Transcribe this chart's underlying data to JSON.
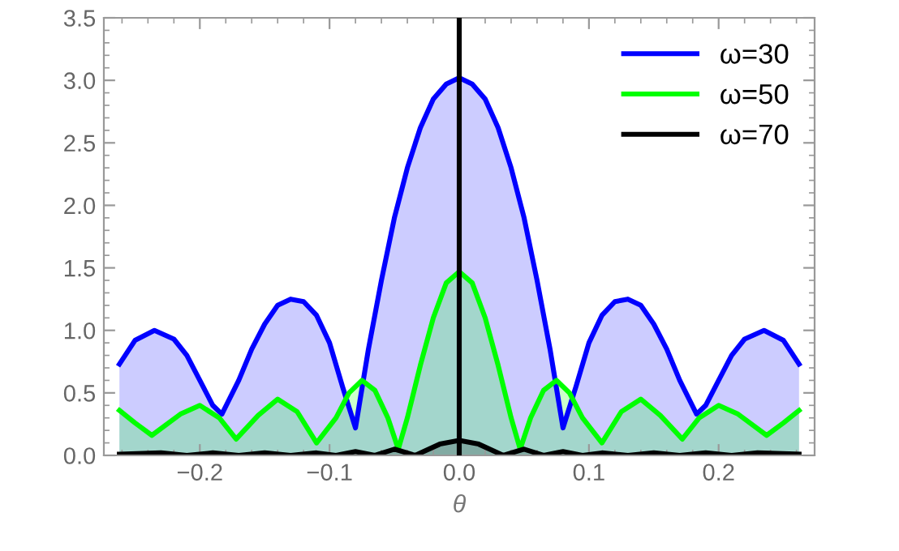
{
  "chart_data": {
    "type": "area",
    "xlabel": "θ",
    "xlim": [
      -0.274,
      0.274
    ],
    "ylim": [
      0,
      3.5
    ],
    "xticks": [
      {
        "value": -0.2,
        "label": "−0.2"
      },
      {
        "value": -0.1,
        "label": "−0.1"
      },
      {
        "value": 0,
        "label": "0.0"
      },
      0.1,
      0.2
    ],
    "yticks": [
      {
        "value": 0,
        "label": "0.0"
      },
      0.5,
      {
        "value": 1,
        "label": "1.0"
      },
      1.5,
      {
        "value": 2,
        "label": "2.0"
      },
      2.5,
      {
        "value": 3,
        "label": "3.0"
      },
      3.5
    ],
    "legend": "top right",
    "grid": false,
    "ref_lines": [
      {
        "axis": "x",
        "value": 0,
        "color": "#000000"
      }
    ],
    "series": [
      {
        "name": "ω=30",
        "color": "#0000ff",
        "x": [
          -0.262,
          -0.25,
          -0.235,
          -0.22,
          -0.21,
          -0.2,
          -0.19,
          -0.183,
          -0.17,
          -0.16,
          -0.15,
          -0.14,
          -0.13,
          -0.12,
          -0.11,
          -0.1,
          -0.09,
          -0.08,
          -0.07,
          -0.06,
          -0.05,
          -0.04,
          -0.03,
          -0.02,
          -0.01,
          0,
          0.01,
          0.02,
          0.03,
          0.04,
          0.05,
          0.06,
          0.07,
          0.08,
          0.09,
          0.1,
          0.11,
          0.12,
          0.13,
          0.14,
          0.15,
          0.16,
          0.17,
          0.183,
          0.19,
          0.2,
          0.21,
          0.22,
          0.235,
          0.25,
          0.262
        ],
        "values": [
          0.73,
          0.92,
          1.0,
          0.93,
          0.8,
          0.6,
          0.4,
          0.33,
          0.6,
          0.85,
          1.05,
          1.2,
          1.25,
          1.23,
          1.12,
          0.9,
          0.55,
          0.22,
          0.85,
          1.4,
          1.9,
          2.3,
          2.62,
          2.85,
          2.97,
          3.02,
          2.97,
          2.85,
          2.62,
          2.3,
          1.9,
          1.4,
          0.85,
          0.22,
          0.55,
          0.9,
          1.12,
          1.23,
          1.25,
          1.2,
          1.05,
          0.85,
          0.6,
          0.33,
          0.4,
          0.6,
          0.8,
          0.93,
          1.0,
          0.92,
          0.73
        ]
      },
      {
        "name": "ω=50",
        "color": "#00ff00",
        "x": [
          -0.262,
          -0.25,
          -0.237,
          -0.215,
          -0.2,
          -0.185,
          -0.172,
          -0.155,
          -0.14,
          -0.125,
          -0.11,
          -0.095,
          -0.085,
          -0.075,
          -0.065,
          -0.055,
          -0.047,
          -0.04,
          -0.03,
          -0.02,
          -0.01,
          0,
          0.01,
          0.02,
          0.03,
          0.04,
          0.047,
          0.055,
          0.065,
          0.075,
          0.085,
          0.095,
          0.11,
          0.125,
          0.14,
          0.155,
          0.172,
          0.185,
          0.2,
          0.215,
          0.237,
          0.25,
          0.262
        ],
        "values": [
          0.36,
          0.26,
          0.16,
          0.33,
          0.4,
          0.3,
          0.13,
          0.32,
          0.45,
          0.35,
          0.1,
          0.3,
          0.5,
          0.6,
          0.52,
          0.3,
          0.05,
          0.3,
          0.72,
          1.1,
          1.38,
          1.47,
          1.38,
          1.1,
          0.72,
          0.3,
          0.05,
          0.3,
          0.52,
          0.6,
          0.5,
          0.3,
          0.1,
          0.35,
          0.45,
          0.32,
          0.13,
          0.3,
          0.4,
          0.33,
          0.16,
          0.26,
          0.36
        ]
      },
      {
        "name": "ω=70",
        "color": "#000000",
        "x": [
          -0.262,
          -0.23,
          -0.21,
          -0.19,
          -0.17,
          -0.15,
          -0.13,
          -0.11,
          -0.095,
          -0.08,
          -0.065,
          -0.05,
          -0.034,
          -0.015,
          0,
          0.015,
          0.034,
          0.05,
          0.065,
          0.08,
          0.095,
          0.11,
          0.13,
          0.15,
          0.17,
          0.19,
          0.21,
          0.23,
          0.262
        ],
        "values": [
          0.01,
          0.02,
          0.0,
          0.02,
          0.0,
          0.02,
          0.0,
          0.02,
          0.0,
          0.03,
          0.0,
          0.05,
          0.0,
          0.09,
          0.12,
          0.09,
          0.0,
          0.05,
          0.0,
          0.03,
          0.0,
          0.02,
          0.0,
          0.02,
          0.0,
          0.02,
          0.0,
          0.02,
          0.01
        ]
      }
    ]
  }
}
